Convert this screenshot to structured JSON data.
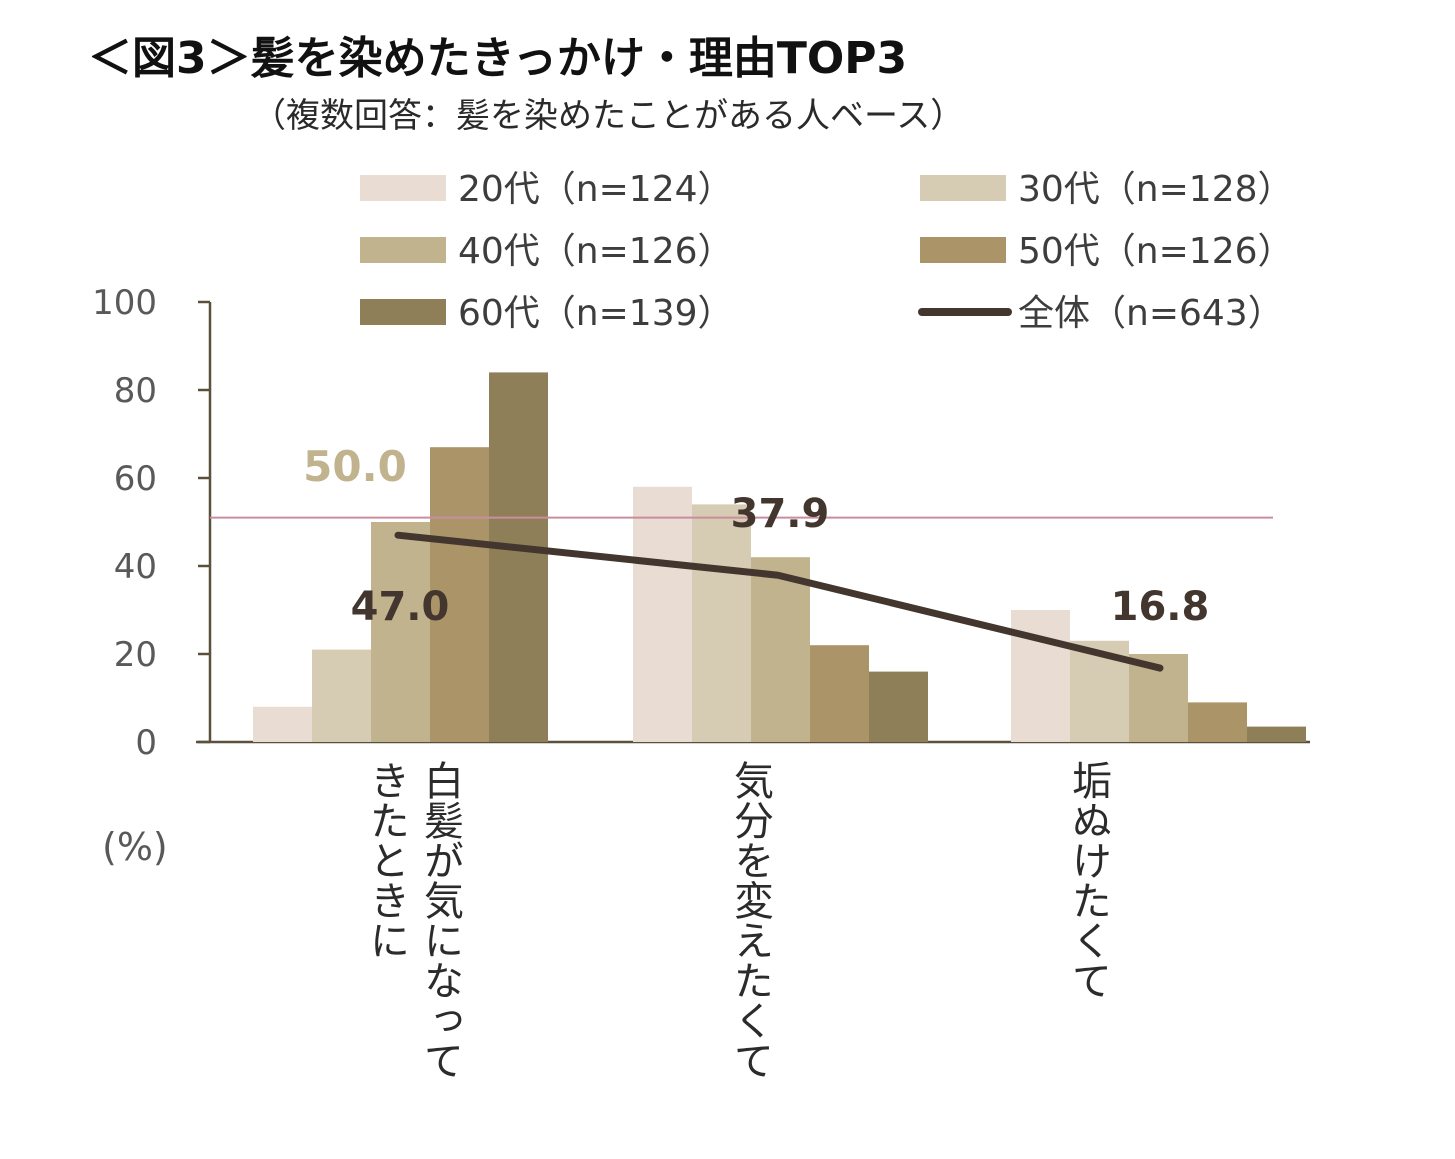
{
  "title": "＜図3＞髪を染めたきっかけ・理由TOP3",
  "subtitle": "（複数回答：髪を染めたことがある人ベース）",
  "chart_data": {
    "type": "bar",
    "ylim": [
      0,
      100
    ],
    "yticks": [
      0,
      20,
      40,
      60,
      80,
      100
    ],
    "ylabel": "(%)",
    "categories": [
      {
        "lines": [
          "白髪が気になって",
          "きたときに"
        ]
      },
      {
        "lines": [
          "気分を変えたくて"
        ]
      },
      {
        "lines": [
          "垢ぬけたくて"
        ]
      }
    ],
    "series": [
      {
        "name": "20代（n=124）",
        "color": "#e8dcd3",
        "values": [
          8,
          58,
          30
        ]
      },
      {
        "name": "30代（n=128）",
        "color": "#d6cbb3",
        "values": [
          21,
          54,
          23
        ]
      },
      {
        "name": "40代（n=126）",
        "color": "#c0b38d",
        "values": [
          50,
          42,
          20
        ]
      },
      {
        "name": "50代（n=126）",
        "color": "#ab9468",
        "values": [
          67,
          22,
          9
        ]
      },
      {
        "name": "60代（n=139）",
        "color": "#8e7f58",
        "values": [
          84,
          16,
          3.5
        ]
      }
    ],
    "line": {
      "name": "全体（n=643）",
      "color": "#43362e",
      "values": [
        47.0,
        37.9,
        16.8
      ],
      "labels": [
        "47.0",
        "37.9",
        "16.8"
      ]
    },
    "reference": {
      "value": 51,
      "color": "#c98da0"
    },
    "annotations": [
      {
        "text": "50.0",
        "color": "#c2b38f",
        "series": 2,
        "category": 0
      }
    ]
  }
}
